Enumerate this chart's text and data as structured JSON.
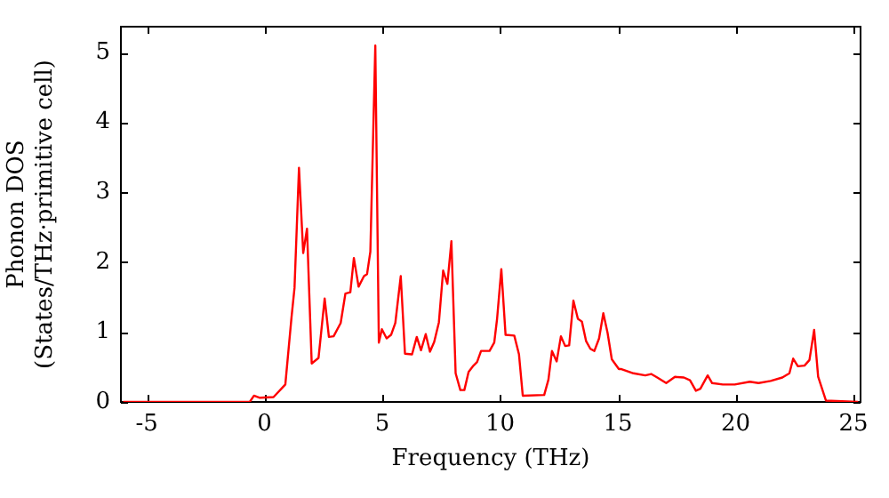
{
  "chart_data": {
    "type": "line",
    "xlabel": "Frequency (THz)",
    "ylabel": [
      "Phonon DOS",
      "(States/THz·primitive cell)"
    ],
    "xlim": [
      -6.1,
      25.3
    ],
    "ylim": [
      0,
      5.37
    ],
    "xticks": [
      -5,
      0,
      5,
      10,
      15,
      20,
      25
    ],
    "yticks": [
      0,
      1,
      2,
      3,
      4,
      5
    ],
    "grid": false,
    "legend": false,
    "marker": "none",
    "line_style": "solid",
    "series": [
      {
        "color": "#ff0000",
        "x": [
          -6.0,
          -0.63,
          -0.45,
          -0.2,
          0.38,
          0.88,
          1.14,
          1.27,
          1.46,
          1.64,
          1.8,
          2.0,
          2.29,
          2.55,
          2.73,
          2.93,
          3.23,
          3.43,
          3.64,
          3.79,
          3.99,
          4.22,
          4.35,
          4.49,
          4.7,
          4.85,
          4.98,
          5.18,
          5.37,
          5.55,
          5.78,
          5.96,
          6.26,
          6.46,
          6.64,
          6.84,
          7.02,
          7.2,
          7.4,
          7.58,
          7.76,
          7.93,
          8.11,
          8.31,
          8.48,
          8.66,
          8.84,
          9.02,
          9.19,
          9.55,
          9.75,
          9.87,
          10.05,
          10.23,
          10.6,
          10.8,
          10.96,
          11.87,
          12.05,
          12.2,
          12.4,
          12.58,
          12.76,
          12.93,
          13.11,
          13.3,
          13.47,
          13.65,
          13.83,
          14.0,
          14.2,
          14.38,
          14.56,
          14.74,
          15.04,
          15.15,
          15.66,
          16.16,
          16.41,
          16.67,
          17.05,
          17.42,
          17.8,
          18.06,
          18.31,
          18.5,
          18.81,
          19.0,
          19.45,
          19.96,
          20.6,
          20.97,
          21.48,
          21.98,
          22.28,
          22.44,
          22.64,
          22.92,
          23.13,
          23.33,
          23.5,
          23.83,
          25.2
        ],
        "values": [
          0,
          0,
          0.09,
          0.06,
          0.07,
          0.25,
          1.2,
          1.63,
          3.35,
          2.13,
          2.48,
          0.55,
          0.63,
          1.48,
          0.93,
          0.94,
          1.13,
          1.55,
          1.57,
          2.06,
          1.65,
          1.8,
          1.83,
          2.15,
          5.1,
          0.85,
          1.04,
          0.91,
          0.96,
          1.13,
          1.8,
          0.69,
          0.68,
          0.93,
          0.74,
          0.97,
          0.72,
          0.86,
          1.14,
          1.88,
          1.69,
          2.3,
          0.41,
          0.17,
          0.17,
          0.43,
          0.51,
          0.57,
          0.73,
          0.73,
          0.85,
          1.19,
          1.9,
          0.96,
          0.95,
          0.68,
          0.09,
          0.1,
          0.32,
          0.73,
          0.58,
          0.94,
          0.8,
          0.81,
          1.45,
          1.19,
          1.15,
          0.87,
          0.76,
          0.73,
          0.91,
          1.27,
          0.99,
          0.61,
          0.47,
          0.47,
          0.41,
          0.38,
          0.4,
          0.35,
          0.27,
          0.36,
          0.35,
          0.31,
          0.16,
          0.19,
          0.38,
          0.27,
          0.25,
          0.25,
          0.29,
          0.27,
          0.3,
          0.35,
          0.41,
          0.62,
          0.51,
          0.52,
          0.6,
          1.03,
          0.36,
          0.02,
          0
        ]
      }
    ]
  }
}
